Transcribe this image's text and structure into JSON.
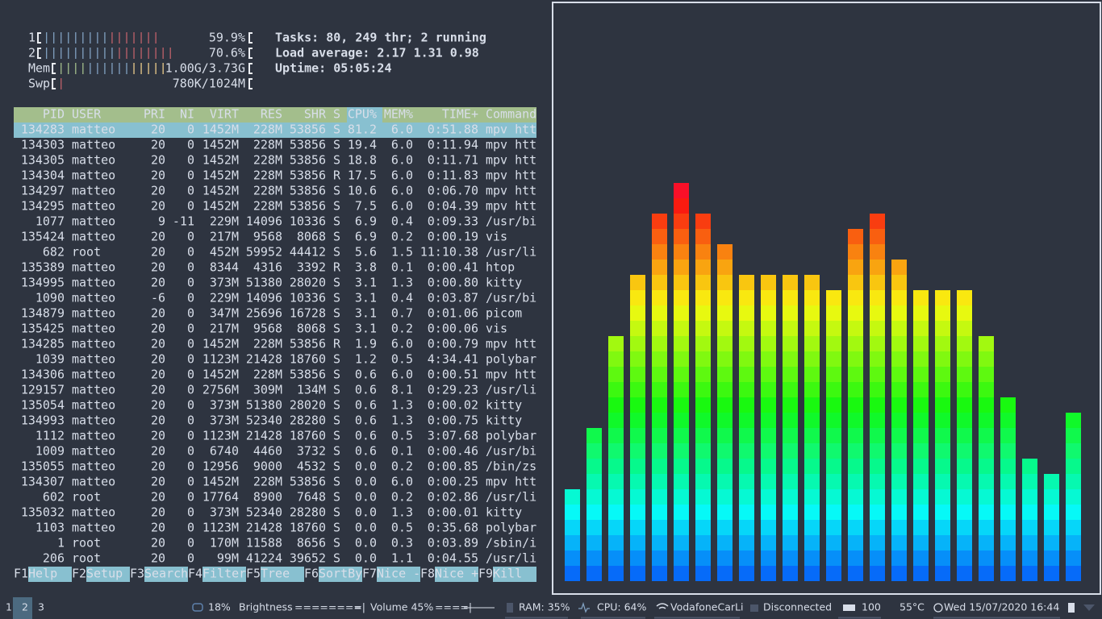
{
  "meters": [
    {
      "label": "1",
      "value": 59.9,
      "text": "59.9%"
    },
    {
      "label": "2",
      "value": 70.6,
      "text": "70.6%"
    },
    {
      "label": "Mem",
      "text": "1.00G/3.73G"
    },
    {
      "label": "Swp",
      "text": "780K/1024M"
    }
  ],
  "summary": {
    "tasks": [
      "Tasks:",
      "80",
      ",",
      "249",
      "thr;",
      "2",
      "running"
    ],
    "load": [
      "Load average:",
      "2.17",
      "1.31",
      "0.98"
    ],
    "uptime": [
      "Uptime:",
      "05:05:24"
    ]
  },
  "table": {
    "columns": [
      "PID",
      "USER",
      "PRI",
      "NI",
      "VIRT",
      "RES",
      "SHR",
      "S",
      "CPU%",
      "MEM%",
      "TIME+",
      "Command"
    ],
    "sort_column": 8,
    "selected_row": 0,
    "thread_rows": [
      1,
      2,
      3,
      4,
      5,
      11,
      13,
      14,
      16,
      18,
      20,
      23,
      25,
      26
    ],
    "rows": [
      [
        "134283",
        "matteo",
        "20",
        "0",
        "1452M",
        "228M",
        "53856",
        "S",
        "81.2",
        "6.0",
        "0:51.88",
        "mpv htt"
      ],
      [
        "134303",
        "matteo",
        "20",
        "0",
        "1452M",
        "228M",
        "53856",
        "S",
        "19.4",
        "6.0",
        "0:11.94",
        "mpv htt"
      ],
      [
        "134305",
        "matteo",
        "20",
        "0",
        "1452M",
        "228M",
        "53856",
        "S",
        "18.8",
        "6.0",
        "0:11.71",
        "mpv htt"
      ],
      [
        "134304",
        "matteo",
        "20",
        "0",
        "1452M",
        "228M",
        "53856",
        "R",
        "17.5",
        "6.0",
        "0:11.83",
        "mpv htt"
      ],
      [
        "134297",
        "matteo",
        "20",
        "0",
        "1452M",
        "228M",
        "53856",
        "S",
        "10.6",
        "6.0",
        "0:06.70",
        "mpv htt"
      ],
      [
        "134295",
        "matteo",
        "20",
        "0",
        "1452M",
        "228M",
        "53856",
        "S",
        "7.5",
        "6.0",
        "0:04.39",
        "mpv htt"
      ],
      [
        "1077",
        "matteo",
        "9",
        "-11",
        "229M",
        "14096",
        "10336",
        "S",
        "6.9",
        "0.4",
        "0:09.33",
        "/usr/bi"
      ],
      [
        "135424",
        "matteo",
        "20",
        "0",
        "217M",
        "9568",
        "8068",
        "S",
        "6.9",
        "0.2",
        "0:00.19",
        "vis"
      ],
      [
        "682",
        "root",
        "20",
        "0",
        "452M",
        "59952",
        "44412",
        "S",
        "5.6",
        "1.5",
        "11:10.38",
        "/usr/li"
      ],
      [
        "135389",
        "matteo",
        "20",
        "0",
        "8344",
        "4316",
        "3392",
        "R",
        "3.8",
        "0.1",
        "0:00.41",
        "htop"
      ],
      [
        "134995",
        "matteo",
        "20",
        "0",
        "373M",
        "51380",
        "28020",
        "S",
        "3.1",
        "1.3",
        "0:00.80",
        "kitty"
      ],
      [
        "1090",
        "matteo",
        "-6",
        "0",
        "229M",
        "14096",
        "10336",
        "S",
        "3.1",
        "0.4",
        "0:03.87",
        "/usr/bi"
      ],
      [
        "134879",
        "matteo",
        "20",
        "0",
        "347M",
        "25696",
        "16728",
        "S",
        "3.1",
        "0.7",
        "0:01.06",
        "picom"
      ],
      [
        "135425",
        "matteo",
        "20",
        "0",
        "217M",
        "9568",
        "8068",
        "S",
        "3.1",
        "0.2",
        "0:00.06",
        "vis"
      ],
      [
        "134285",
        "matteo",
        "20",
        "0",
        "1452M",
        "228M",
        "53856",
        "R",
        "1.9",
        "6.0",
        "0:00.79",
        "mpv htt"
      ],
      [
        "1039",
        "matteo",
        "20",
        "0",
        "1123M",
        "21428",
        "18760",
        "S",
        "1.2",
        "0.5",
        "4:34.41",
        "polybar"
      ],
      [
        "134306",
        "matteo",
        "20",
        "0",
        "1452M",
        "228M",
        "53856",
        "S",
        "0.6",
        "6.0",
        "0:00.51",
        "mpv htt"
      ],
      [
        "129157",
        "matteo",
        "20",
        "0",
        "2756M",
        "309M",
        "134M",
        "S",
        "0.6",
        "8.1",
        "0:29.23",
        "/usr/li"
      ],
      [
        "135054",
        "matteo",
        "20",
        "0",
        "373M",
        "51380",
        "28020",
        "S",
        "0.6",
        "1.3",
        "0:00.02",
        "kitty"
      ],
      [
        "134993",
        "matteo",
        "20",
        "0",
        "373M",
        "52340",
        "28280",
        "S",
        "0.6",
        "1.3",
        "0:00.75",
        "kitty"
      ],
      [
        "1112",
        "matteo",
        "20",
        "0",
        "1123M",
        "21428",
        "18760",
        "S",
        "0.6",
        "0.5",
        "3:07.68",
        "polybar"
      ],
      [
        "1009",
        "matteo",
        "20",
        "0",
        "6740",
        "4460",
        "3732",
        "S",
        "0.6",
        "0.1",
        "0:00.46",
        "/usr/bi"
      ],
      [
        "135055",
        "matteo",
        "20",
        "0",
        "12956",
        "9000",
        "4532",
        "S",
        "0.0",
        "0.2",
        "0:00.85",
        "/bin/zs"
      ],
      [
        "134307",
        "matteo",
        "20",
        "0",
        "1452M",
        "228M",
        "53856",
        "S",
        "0.0",
        "6.0",
        "0:00.25",
        "mpv htt"
      ],
      [
        "602",
        "root",
        "20",
        "0",
        "17764",
        "8900",
        "7648",
        "S",
        "0.0",
        "0.2",
        "0:02.86",
        "/usr/li"
      ],
      [
        "135032",
        "matteo",
        "20",
        "0",
        "373M",
        "52340",
        "28280",
        "S",
        "0.0",
        "1.3",
        "0:00.01",
        "kitty"
      ],
      [
        "1103",
        "matteo",
        "20",
        "0",
        "1123M",
        "21428",
        "18760",
        "S",
        "0.0",
        "0.5",
        "0:35.68",
        "polybar"
      ],
      [
        "1",
        "root",
        "20",
        "0",
        "170M",
        "11588",
        "8656",
        "S",
        "0.0",
        "0.3",
        "0:03.89",
        "/sbin/i"
      ],
      [
        "206",
        "root",
        "20",
        "0",
        "99M",
        "41224",
        "39652",
        "S",
        "0.0",
        "1.1",
        "0:04.55",
        "/usr/li"
      ]
    ]
  },
  "function_keys": [
    {
      "key": "F1",
      "label": "Help"
    },
    {
      "key": "F2",
      "label": "Setup"
    },
    {
      "key": "F3",
      "label": "Search"
    },
    {
      "key": "F4",
      "label": "Filter"
    },
    {
      "key": "F5",
      "label": "Tree"
    },
    {
      "key": "F6",
      "label": "SortBy"
    },
    {
      "key": "F7",
      "label": "Nice -"
    },
    {
      "key": "F8",
      "label": "Nice +"
    },
    {
      "key": "F9",
      "label": "Kill"
    }
  ],
  "visualizer": {
    "levels": [
      6,
      10,
      16,
      20,
      24,
      26,
      24,
      22,
      20,
      20,
      20,
      20,
      19,
      23,
      24,
      21,
      19,
      19,
      19,
      16,
      12,
      8,
      7,
      11
    ]
  },
  "statusbar": {
    "workspaces": [
      "1",
      "2",
      "3"
    ],
    "active_workspace": 1,
    "disk": "18%",
    "brightness_label": "Brightness",
    "brightness_bar": "========|",
    "volume": "Volume 45%",
    "volume_bar": "====|",
    "ram": "RAM: 35%",
    "cpu": "CPU: 64%",
    "wifi": "VodafoneCarLi",
    "vpn": "Disconnected",
    "battery": "100",
    "temperature": "55°C",
    "datetime": "Wed 15/07/2020 16:44"
  }
}
